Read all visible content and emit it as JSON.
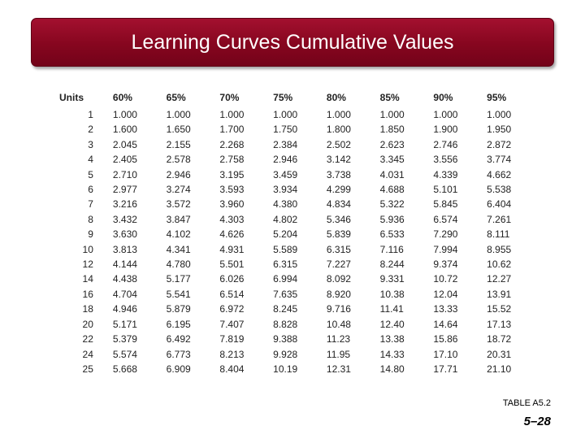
{
  "slide": {
    "title": "Learning Curves Cumulative Values",
    "table_label": "TABLE A5.2",
    "page_number": "5–28"
  },
  "table": {
    "headers": [
      "Units",
      "60%",
      "65%",
      "70%",
      "75%",
      "80%",
      "85%",
      "90%",
      "95%"
    ],
    "rows": [
      [
        "1",
        "1.000",
        "1.000",
        "1.000",
        "1.000",
        "1.000",
        "1.000",
        "1.000",
        "1.000"
      ],
      [
        "2",
        "1.600",
        "1.650",
        "1.700",
        "1.750",
        "1.800",
        "1.850",
        "1.900",
        "1.950"
      ],
      [
        "3",
        "2.045",
        "2.155",
        "2.268",
        "2.384",
        "2.502",
        "2.623",
        "2.746",
        "2.872"
      ],
      [
        "4",
        "2.405",
        "2.578",
        "2.758",
        "2.946",
        "3.142",
        "3.345",
        "3.556",
        "3.774"
      ],
      [
        "5",
        "2.710",
        "2.946",
        "3.195",
        "3.459",
        "3.738",
        "4.031",
        "4.339",
        "4.662"
      ],
      [
        "6",
        "2.977",
        "3.274",
        "3.593",
        "3.934",
        "4.299",
        "4.688",
        "5.101",
        "5.538"
      ],
      [
        "7",
        "3.216",
        "3.572",
        "3.960",
        "4.380",
        "4.834",
        "5.322",
        "5.845",
        "6.404"
      ],
      [
        "8",
        "3.432",
        "3.847",
        "4.303",
        "4.802",
        "5.346",
        "5.936",
        "6.574",
        "7.261"
      ],
      [
        "9",
        "3.630",
        "4.102",
        "4.626",
        "5.204",
        "5.839",
        "6.533",
        "7.290",
        "8.111"
      ],
      [
        "10",
        "3.813",
        "4.341",
        "4.931",
        "5.589",
        "6.315",
        "7.116",
        "7.994",
        "8.955"
      ],
      [
        "12",
        "4.144",
        "4.780",
        "5.501",
        "6.315",
        "7.227",
        "8.244",
        "9.374",
        "10.62"
      ],
      [
        "14",
        "4.438",
        "5.177",
        "6.026",
        "6.994",
        "8.092",
        "9.331",
        "10.72",
        "12.27"
      ],
      [
        "16",
        "4.704",
        "5.541",
        "6.514",
        "7.635",
        "8.920",
        "10.38",
        "12.04",
        "13.91"
      ],
      [
        "18",
        "4.946",
        "5.879",
        "6.972",
        "8.245",
        "9.716",
        "11.41",
        "13.33",
        "15.52"
      ],
      [
        "20",
        "5.171",
        "6.195",
        "7.407",
        "8.828",
        "10.48",
        "12.40",
        "14.64",
        "17.13"
      ],
      [
        "22",
        "5.379",
        "6.492",
        "7.819",
        "9.388",
        "11.23",
        "13.38",
        "15.86",
        "18.72"
      ],
      [
        "24",
        "5.574",
        "6.773",
        "8.213",
        "9.928",
        "11.95",
        "14.33",
        "17.10",
        "20.31"
      ],
      [
        "25",
        "5.668",
        "6.909",
        "8.404",
        "10.19",
        "12.31",
        "14.80",
        "17.71",
        "21.10"
      ]
    ]
  }
}
